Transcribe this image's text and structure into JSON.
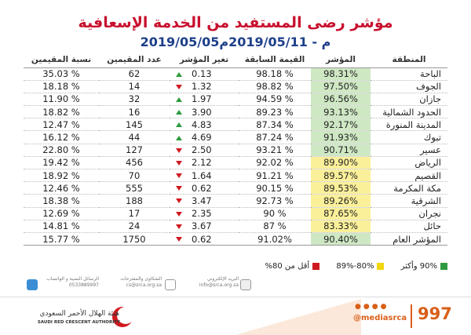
{
  "header": {
    "title": "مؤشر رضى المستفيد من الخدمة الإسعافية",
    "date_range": "2019/05/05م - 2019/05/11م"
  },
  "table": {
    "columns": [
      "المنطقة",
      "المؤشر",
      "القيمة السابقة",
      "تغير المؤشر",
      "عدد المقيمين",
      "نسبة المقيمين"
    ],
    "rows": [
      {
        "region": "الباحة",
        "index": "98.31%",
        "band": "green",
        "previous": "98.18 %",
        "change": "0.13",
        "dir": "up",
        "raters": "62",
        "share": "35.03 %"
      },
      {
        "region": "الجوف",
        "index": "97.50%",
        "band": "green",
        "previous": "98.82 %",
        "change": "1.32",
        "dir": "down",
        "raters": "14",
        "share": "18.18 %"
      },
      {
        "region": "جازان",
        "index": "96.56%",
        "band": "green",
        "previous": "94.59 %",
        "change": "1.97",
        "dir": "up",
        "raters": "32",
        "share": "11.90 %"
      },
      {
        "region": "الحدود الشمالية",
        "index": "93.13%",
        "band": "green",
        "previous": "89.23 %",
        "change": "3.90",
        "dir": "up",
        "raters": "16",
        "share": "18.82 %"
      },
      {
        "region": "المدينة المنورة",
        "index": "92.17%",
        "band": "green",
        "previous": "87.34 %",
        "change": "4.83",
        "dir": "up",
        "raters": "145",
        "share": "12.47 %"
      },
      {
        "region": "تبوك",
        "index": "91.93%",
        "band": "green",
        "previous": "87.24 %",
        "change": "4.69",
        "dir": "up",
        "raters": "44",
        "share": "16.12 %"
      },
      {
        "region": "عسير",
        "index": "90.71%",
        "band": "green",
        "previous": "93.21 %",
        "change": "2.50",
        "dir": "down",
        "raters": "127",
        "share": "22.80 %"
      },
      {
        "region": "الرياض",
        "index": "89.90%",
        "band": "yellow",
        "previous": "92.02 %",
        "change": "2.12",
        "dir": "down",
        "raters": "456",
        "share": "19.42 %"
      },
      {
        "region": "القصيم",
        "index": "89.57%",
        "band": "yellow",
        "previous": "91.21 %",
        "change": "1.64",
        "dir": "down",
        "raters": "70",
        "share": "18.92 %"
      },
      {
        "region": "مكة المكرمة",
        "index": "89.53%",
        "band": "yellow",
        "previous": "90.15 %",
        "change": "0.62",
        "dir": "down",
        "raters": "555",
        "share": "12.46 %"
      },
      {
        "region": "الشرقية",
        "index": "89.26%",
        "band": "yellow",
        "previous": "92.73 %",
        "change": "3.47",
        "dir": "down",
        "raters": "188",
        "share": "18.38 %"
      },
      {
        "region": "نجران",
        "index": "87.65%",
        "band": "yellow",
        "previous": "90 %",
        "change": "2.35",
        "dir": "down",
        "raters": "17",
        "share": "12.69 %"
      },
      {
        "region": "حائل",
        "index": "83.33%",
        "band": "yellow",
        "previous": "87 %",
        "change": "3.67",
        "dir": "down",
        "raters": "24",
        "share": "14.81 %"
      },
      {
        "region": "المؤشر العام",
        "index": "90.40%",
        "band": "green",
        "previous": "91.02%",
        "change": "0.62",
        "dir": "down",
        "raters": "1750",
        "share": "15.77 %"
      }
    ]
  },
  "legend": {
    "green_label": "90% وأكثر",
    "yellow_label": "80%-89%",
    "red_label": "أقل من 80%"
  },
  "colors": {
    "green": "#cfe8c4",
    "yellow": "#fbf09a",
    "red": "#d0191f",
    "title_red": "#c8102e",
    "subtitle_blue": "#1d3f8a",
    "accent_orange": "#d95f18"
  },
  "contacts": {
    "email_label": "البريد الإلكتروني",
    "email_value": "info@srca.org.sa",
    "complaints_label": "الشكاوى والمقترحات",
    "complaints_value": "cs@srca.org.sa",
    "sms_label": "الرسائل النصية و الواتساب",
    "sms_value": "0533889997"
  },
  "footer": {
    "number": "997",
    "handle": "@mediasrca",
    "org_name_ar": "هيئة الهلال الأحمر السعودي",
    "org_name_en": "SAUDI RED CRESCENT AUTHORITY"
  }
}
